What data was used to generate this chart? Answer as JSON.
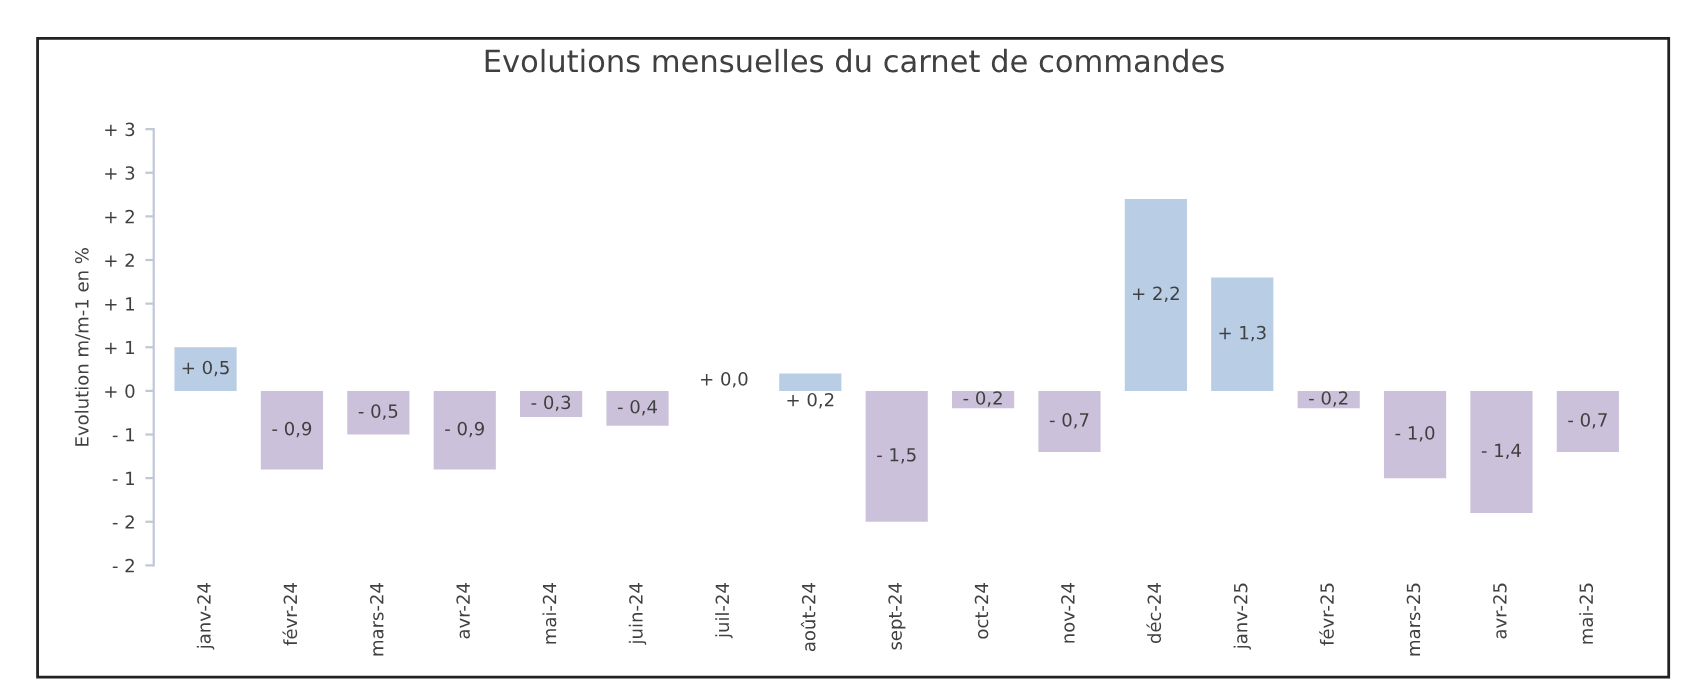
{
  "chart_data": {
    "type": "bar",
    "title": "Evolutions mensuelles du carnet de commandes",
    "ylabel": "Evolution m/m-1 en %",
    "categories": [
      "janv-24",
      "févr-24",
      "mars-24",
      "avr-24",
      "mai-24",
      "juin-24",
      "juil-24",
      "août-24",
      "sept-24",
      "oct-24",
      "nov-24",
      "déc-24",
      "janv-25",
      "févr-25",
      "mars-25",
      "avr-25",
      "mai-25"
    ],
    "values": [
      0.5,
      -0.9,
      -0.5,
      -0.9,
      -0.3,
      -0.4,
      0.0,
      0.2,
      -1.5,
      -0.2,
      -0.7,
      2.2,
      1.3,
      -0.2,
      -1.0,
      -1.4,
      -0.7
    ],
    "value_labels": [
      "+ 0,5",
      "- 0,9",
      "- 0,5",
      "- 0,9",
      "- 0,3",
      "- 0,4",
      "+ 0,0",
      "+ 0,2",
      "- 1,5",
      "- 0,2",
      "- 0,7",
      "+ 2,2",
      "+ 1,3",
      "- 0,2",
      "- 1,0",
      "- 1,4",
      "- 0,7"
    ],
    "colors": [
      "#b9cde5",
      "#ccc1da",
      "#ccc1da",
      "#ccc1da",
      "#ccc1da",
      "#ccc1da",
      "#b9cde5",
      "#b9cde5",
      "#ccc1da",
      "#ccc1da",
      "#ccc1da",
      "#b9cde5",
      "#b9cde5",
      "#ccc1da",
      "#ccc1da",
      "#ccc1da",
      "#ccc1da"
    ],
    "ylim": [
      -2,
      3
    ],
    "yticks": [
      {
        "value": 3,
        "label": "+ 3"
      },
      {
        "value": 2.5,
        "label": "+ 3"
      },
      {
        "value": 2,
        "label": "+ 2"
      },
      {
        "value": 1.5,
        "label": "+ 2"
      },
      {
        "value": 1,
        "label": "+ 1"
      },
      {
        "value": 0.5,
        "label": "+ 1"
      },
      {
        "value": 0,
        "label": "+ 0"
      },
      {
        "value": -0.5,
        "label": "- 1"
      },
      {
        "value": -1,
        "label": "- 1"
      },
      {
        "value": -1.5,
        "label": "- 2"
      },
      {
        "value": -2,
        "label": "- 2"
      }
    ],
    "grid": false
  }
}
